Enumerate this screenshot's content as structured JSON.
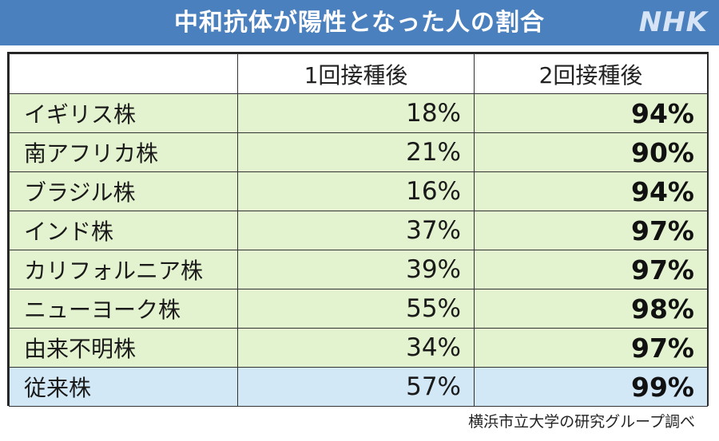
{
  "title": "中和抗体が陽性となった人の割合",
  "logo": "NHK",
  "source": "横浜市立大学の研究グループ調べ",
  "colors": {
    "title_bar": "#4a80bd",
    "variant_row": "#e4f3cf",
    "baseline_row": "#d3e8f7"
  },
  "chart_data": {
    "type": "table",
    "title": "中和抗体が陽性となった人の割合",
    "columns": [
      "",
      "1回接種後",
      "2回接種後"
    ],
    "rows": [
      {
        "name": "イギリス株",
        "dose1": "18%",
        "dose2": "94%"
      },
      {
        "name": "南アフリカ株",
        "dose1": "21%",
        "dose2": "90%"
      },
      {
        "name": "ブラジル株",
        "dose1": "16%",
        "dose2": "94%"
      },
      {
        "name": "インド株",
        "dose1": "37%",
        "dose2": "97%"
      },
      {
        "name": "カリフォルニア株",
        "dose1": "39%",
        "dose2": "97%"
      },
      {
        "name": "ニューヨーク株",
        "dose1": "55%",
        "dose2": "98%"
      },
      {
        "name": "由来不明株",
        "dose1": "34%",
        "dose2": "97%"
      },
      {
        "name": "従来株",
        "dose1": "57%",
        "dose2": "99%"
      }
    ]
  }
}
